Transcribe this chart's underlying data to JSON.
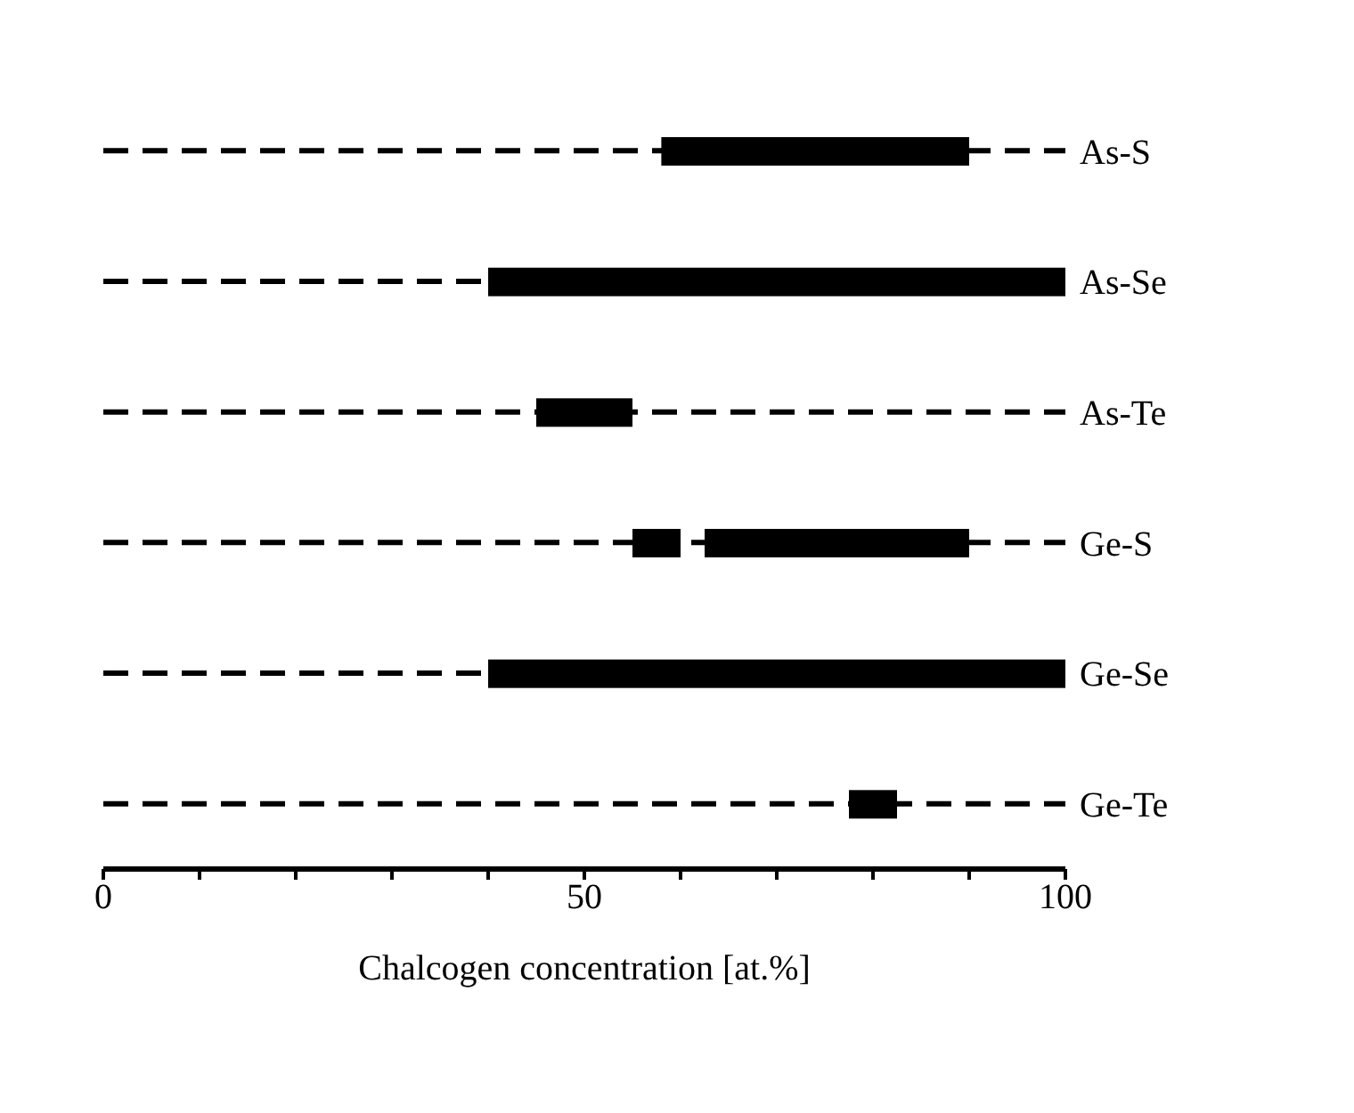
{
  "chart_data": {
    "type": "bar",
    "orientation": "horizontal",
    "xlabel": "Chalcogen concentration [at.%]",
    "categories": [
      "As-S",
      "As-Se",
      "As-Te",
      "Ge-S",
      "Ge-Se",
      "Ge-Te"
    ],
    "series": [
      {
        "color": "#000000",
        "base": [
          58,
          40,
          45,
          55,
          40,
          77.5
        ],
        "values": [
          32,
          60,
          10,
          5,
          60,
          5
        ]
      },
      {
        "color": "#000000",
        "base": [
          null,
          null,
          null,
          62.5,
          null,
          null
        ],
        "values": [
          null,
          null,
          null,
          27.5,
          null,
          null
        ]
      }
    ],
    "grid": "y",
    "xlim": [
      0,
      100
    ],
    "xticks": [
      0,
      {
        "value": 10,
        "label": null
      },
      {
        "value": 20,
        "label": null
      },
      {
        "value": 30,
        "label": null
      },
      {
        "value": 40,
        "label": null
      },
      50,
      {
        "value": 60,
        "label": null
      },
      {
        "value": 70,
        "label": null
      },
      {
        "value": 80,
        "label": null
      },
      {
        "value": 90,
        "label": null
      },
      100
    ]
  }
}
